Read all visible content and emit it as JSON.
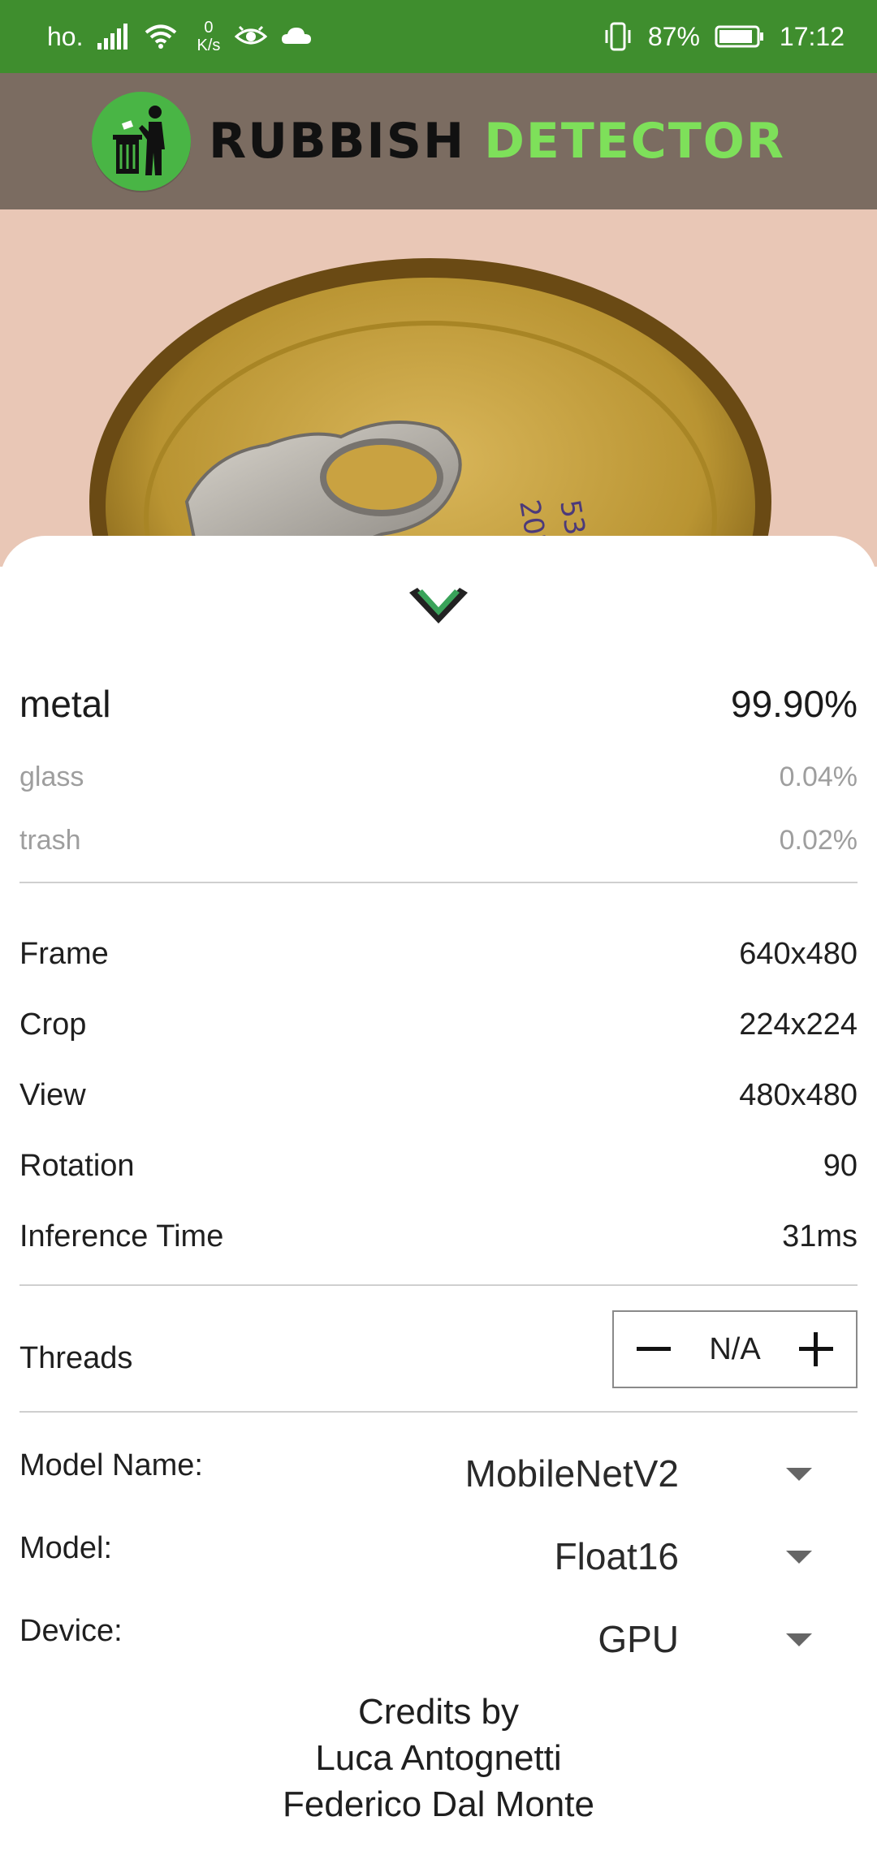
{
  "status_bar": {
    "carrier": "ho.",
    "speed_value": "0",
    "speed_unit": "K/s",
    "battery": "87%",
    "time": "17:12"
  },
  "header": {
    "title_word_1": "RUBBISH",
    "title_word_2": "DETECTOR"
  },
  "results": [
    {
      "label": "metal",
      "value": "99.90%"
    },
    {
      "label": "glass",
      "value": "0.04%"
    },
    {
      "label": "trash",
      "value": "0.02%"
    }
  ],
  "info": [
    {
      "label": "Frame",
      "value": "640x480"
    },
    {
      "label": "Crop",
      "value": "224x224"
    },
    {
      "label": "View",
      "value": "480x480"
    },
    {
      "label": "Rotation",
      "value": "90"
    },
    {
      "label": "Inference Time",
      "value": "31ms"
    }
  ],
  "threads": {
    "label": "Threads",
    "value": "N/A"
  },
  "settings": {
    "model_name_label": "Model Name:",
    "model_name_value": "MobileNetV2",
    "model_label": "Model:",
    "model_value": "Float16",
    "device_label": "Device:",
    "device_value": "GPU"
  },
  "credits": {
    "line1": "Credits by",
    "line2": "Luca Antognetti",
    "line3": "Federico Dal Monte"
  },
  "colors": {
    "status_bar": "#3f8e2e",
    "header": "#7b6c61",
    "accent_green": "#49b545"
  }
}
